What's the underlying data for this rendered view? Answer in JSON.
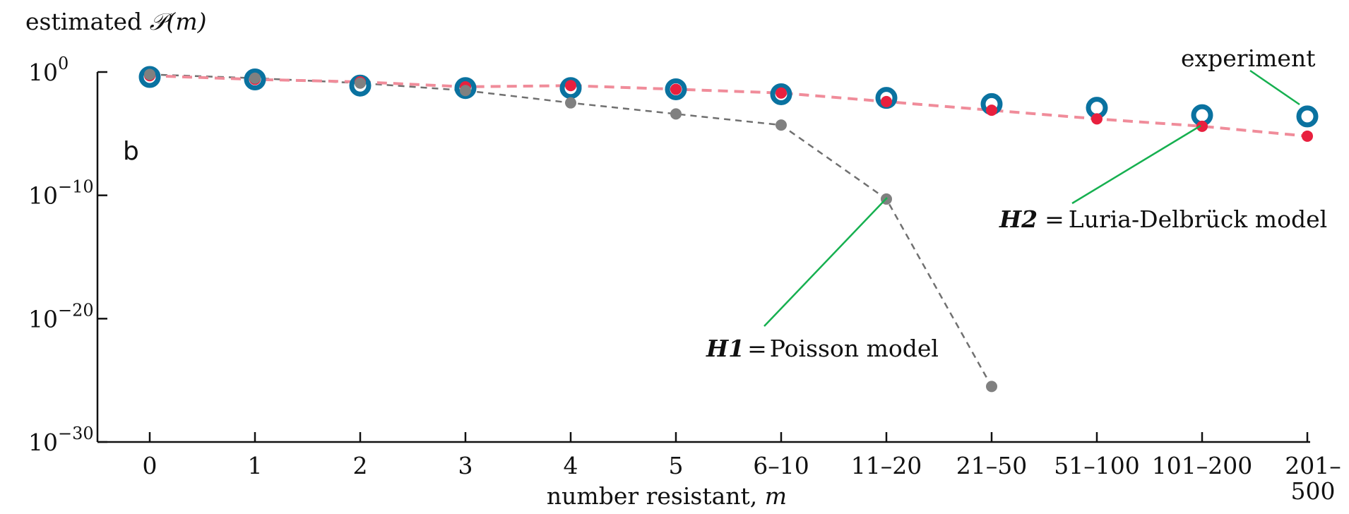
{
  "chart_data": {
    "type": "scatter",
    "panel_label": "b",
    "ylabel_prefix": "estimated ",
    "ylabel_math": "𝒫(m)",
    "xlabel_prefix": "number resistant, ",
    "xlabel_var": "m",
    "y_scale": "log",
    "ylim": [
      -30,
      0
    ],
    "ytick_values": [
      0,
      -10,
      -20,
      -30
    ],
    "ytick_base": "10",
    "categories": [
      "0",
      "1",
      "2",
      "3",
      "4",
      "5",
      "6–10",
      "11–20",
      "21–50",
      "51–100",
      "101–200",
      "201–500"
    ],
    "tick_labels": [
      [
        "0"
      ],
      [
        "1"
      ],
      [
        "2"
      ],
      [
        "3"
      ],
      [
        "4"
      ],
      [
        "5"
      ],
      [
        "6–10"
      ],
      [
        "11–20"
      ],
      [
        "21–50"
      ],
      [
        "51–100"
      ],
      [
        "101–200"
      ],
      [
        "201–",
        "500"
      ]
    ],
    "grid": false,
    "series": [
      {
        "name": "experiment",
        "style": "open-circle",
        "color": "#0a72a0",
        "values": [
          -0.4,
          -0.6,
          -1.1,
          -1.3,
          -1.3,
          -1.4,
          -1.8,
          -2.1,
          -2.6,
          -2.9,
          -3.5,
          -3.6
        ]
      },
      {
        "name": "H2",
        "model": "Luria-Delbrück model",
        "style": "filled-dot-dashed",
        "color": "#e8203e",
        "line_color": "#f08c9a",
        "values": [
          -0.3,
          -0.6,
          -0.8,
          -1.2,
          -1.1,
          -1.4,
          -1.7,
          -2.4,
          -3.1,
          -3.8,
          -4.4,
          -5.2
        ]
      },
      {
        "name": "H1",
        "model": "Poisson model",
        "style": "filled-dot-dashed",
        "color": "#808080",
        "line_color": "#707070",
        "values": [
          -0.2,
          -0.5,
          -0.9,
          -1.5,
          -2.5,
          -3.4,
          -4.3,
          -10.3,
          -25.5,
          null,
          null,
          null
        ]
      }
    ],
    "annotations": {
      "experiment": "experiment",
      "h2_bold": "H2",
      "h2_eq": "=",
      "h2_text": "Luria-Delbrück model",
      "h1_bold": "H1",
      "h1_eq": "=",
      "h1_text": "Poisson model"
    },
    "colors": {
      "axis": "#111111",
      "leader": "#16b050"
    }
  }
}
